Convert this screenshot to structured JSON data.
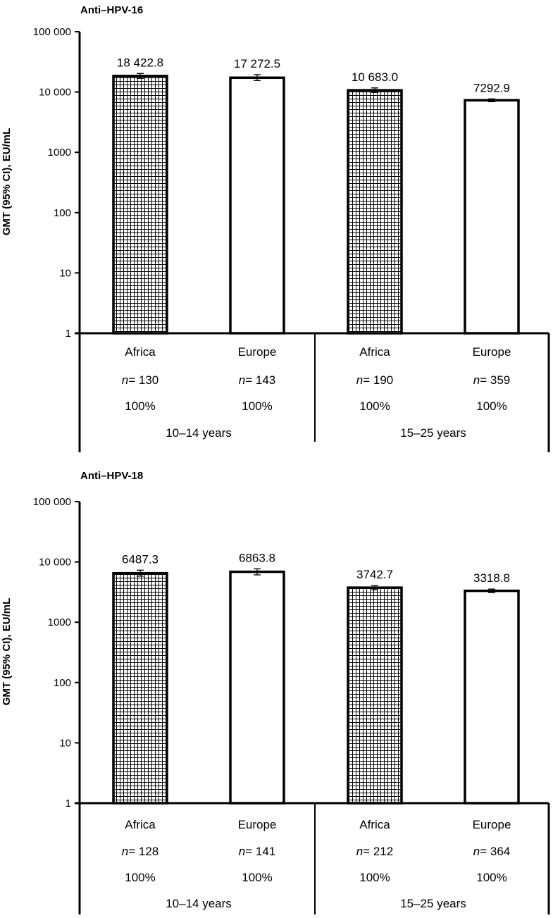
{
  "chart_data": [
    {
      "type": "bar",
      "title": "Anti–HPV-16",
      "ylabel": "GMT (95% CI), EU/mL",
      "yscale": "log",
      "ylim": [
        1,
        100000
      ],
      "yticks": [
        1,
        10,
        100,
        1000,
        10000,
        100000
      ],
      "ytick_labels": [
        "1",
        "10",
        "100",
        "1000",
        "10 000",
        "100 000"
      ],
      "groups": [
        {
          "label": "10–14 years",
          "bar_indices": [
            0,
            1
          ]
        },
        {
          "label": "15–25 years",
          "bar_indices": [
            2,
            3
          ]
        }
      ],
      "bars": [
        {
          "category": "Africa",
          "value": 18422.8,
          "value_label": "18 422.8",
          "ci": [
            16800,
            20300
          ],
          "n_label": "n",
          "n_value": "= 130",
          "pct_label": "100%",
          "pattern": "grid"
        },
        {
          "category": "Europe",
          "value": 17272.5,
          "value_label": "17 272.5",
          "ci": [
            15500,
            19400
          ],
          "n_label": "n",
          "n_value": "= 143",
          "pct_label": "100%",
          "pattern": "none"
        },
        {
          "category": "Africa",
          "value": 10683.0,
          "value_label": "10 683.0",
          "ci": [
            9800,
            11700
          ],
          "n_label": "n",
          "n_value": "= 190",
          "pct_label": "100%",
          "pattern": "grid"
        },
        {
          "category": "Europe",
          "value": 7292.9,
          "value_label": "7292.9",
          "ci": [
            6900,
            7700
          ],
          "n_label": "n",
          "n_value": "= 359",
          "pct_label": "100%",
          "pattern": "none"
        }
      ]
    },
    {
      "type": "bar",
      "title": "Anti–HPV-18",
      "ylabel": "GMT (95% CI), EU/mL",
      "yscale": "log",
      "ylim": [
        1,
        100000
      ],
      "yticks": [
        1,
        10,
        100,
        1000,
        10000,
        100000
      ],
      "ytick_labels": [
        "1",
        "10",
        "100",
        "1000",
        "10 000",
        "100 000"
      ],
      "groups": [
        {
          "label": "10–14 years",
          "bar_indices": [
            0,
            1
          ]
        },
        {
          "label": "15–25 years",
          "bar_indices": [
            2,
            3
          ]
        }
      ],
      "bars": [
        {
          "category": "Africa",
          "value": 6487.3,
          "value_label": "6487.3",
          "ci": [
            5800,
            7300
          ],
          "n_label": "n",
          "n_value": "= 128",
          "pct_label": "100%",
          "pattern": "grid"
        },
        {
          "category": "Europe",
          "value": 6863.8,
          "value_label": "6863.8",
          "ci": [
            6100,
            7700
          ],
          "n_label": "n",
          "n_value": "= 141",
          "pct_label": "100%",
          "pattern": "none"
        },
        {
          "category": "Africa",
          "value": 3742.7,
          "value_label": "3742.7",
          "ci": [
            3450,
            4050
          ],
          "n_label": "n",
          "n_value": "= 212",
          "pct_label": "100%",
          "pattern": "grid"
        },
        {
          "category": "Europe",
          "value": 3318.8,
          "value_label": "3318.8",
          "ci": [
            3100,
            3550
          ],
          "n_label": "n",
          "n_value": "= 364",
          "pct_label": "100%",
          "pattern": "none"
        }
      ]
    }
  ]
}
